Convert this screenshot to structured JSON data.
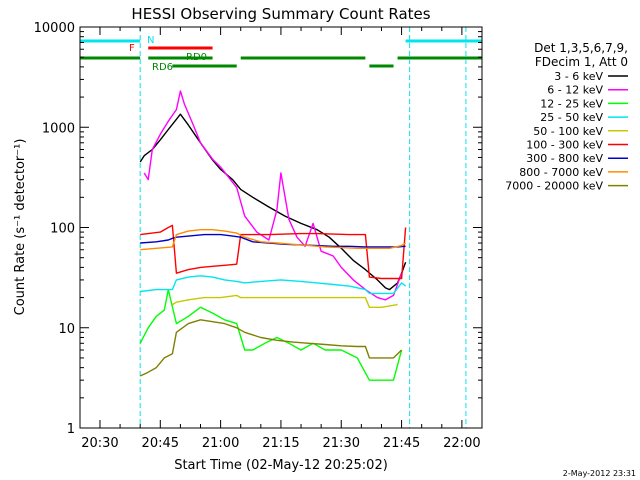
{
  "chart_data": {
    "type": "line",
    "title": "HESSI Observing Summary Count Rates",
    "xlabel": "Start Time (02-May-12 20:25:02)",
    "ylabel": "Count Rate (s⁻¹ detector⁻¹)",
    "yscale": "log",
    "ylim": [
      1,
      10000
    ],
    "xlim": [
      "20:25:02",
      "22:05"
    ],
    "x_ticks": [
      "20:30",
      "20:45",
      "21:00",
      "21:15",
      "21:30",
      "21:45",
      "22:00"
    ],
    "y_ticks": [
      "1",
      "10",
      "100",
      "1000",
      "10000"
    ],
    "grid": false,
    "legend": {
      "placement": "right",
      "header": [
        "Det 1,3,5,6,7,9,",
        "FDecim 1, Att 0"
      ]
    },
    "footer": "2-May-2012 23:31",
    "flag_labels": [
      "N",
      "F",
      "RD0",
      "RD6"
    ],
    "flags": [
      {
        "label": "N",
        "color": "#00e5ee",
        "segments": [
          [
            "20:25",
            "20:40"
          ],
          [
            "21:46",
            "22:05"
          ]
        ]
      },
      {
        "label": "F",
        "color": "#ff0000",
        "segments": [
          [
            "20:42",
            "20:58"
          ]
        ]
      },
      {
        "label": "RD0",
        "color": "#008800",
        "segments": [
          [
            "20:25",
            "20:40"
          ],
          [
            "20:42",
            "20:58"
          ],
          [
            "21:05",
            "21:36"
          ],
          [
            "21:44",
            "22:05"
          ]
        ]
      },
      {
        "label": "RD6",
        "color": "#008800",
        "segments": [
          [
            "20:48",
            "21:04"
          ],
          [
            "21:37",
            "21:43"
          ]
        ]
      }
    ],
    "night_markers": [
      "20:40",
      "21:47",
      "22:01"
    ],
    "series": [
      {
        "name": "3 - 6 keV",
        "color": "#000000",
        "x": [
          "20:40",
          "20:41",
          "20:43",
          "20:45",
          "20:47",
          "20:49",
          "20:50",
          "20:52",
          "20:55",
          "20:58",
          "21:00",
          "21:03",
          "21:05",
          "21:08",
          "21:12",
          "21:16",
          "21:20",
          "21:24",
          "21:27",
          "21:30",
          "21:33",
          "21:36",
          "21:39",
          "21:41",
          "21:42",
          "21:44",
          "21:45",
          "21:46"
        ],
        "y": [
          450,
          520,
          600,
          750,
          950,
          1200,
          1350,
          1050,
          700,
          470,
          380,
          300,
          240,
          200,
          160,
          130,
          110,
          95,
          80,
          62,
          47,
          38,
          30,
          25,
          24,
          28,
          35,
          45
        ]
      },
      {
        "name": "6 - 12 keV",
        "color": "#ff00ff",
        "x": [
          "20:41",
          "20:42",
          "20:43",
          "20:45",
          "20:47",
          "20:49",
          "20:50",
          "20:51",
          "20:53",
          "20:55",
          "20:58",
          "21:00",
          "21:04",
          "21:06",
          "21:09",
          "21:12",
          "21:14",
          "21:15",
          "21:17",
          "21:19",
          "21:21",
          "21:23",
          "21:25",
          "21:28",
          "21:30",
          "21:33",
          "21:36",
          "21:39",
          "21:41",
          "21:43",
          "21:45"
        ],
        "y": [
          350,
          300,
          600,
          850,
          1150,
          1500,
          2300,
          1700,
          1100,
          700,
          480,
          400,
          250,
          130,
          90,
          75,
          150,
          350,
          120,
          80,
          65,
          110,
          58,
          52,
          40,
          30,
          24,
          20,
          19,
          21,
          35
        ]
      },
      {
        "name": "12 - 25 keV",
        "color": "#00ff00",
        "x": [
          "20:40",
          "20:42",
          "20:44",
          "20:46",
          "20:47",
          "20:49",
          "20:52",
          "20:55",
          "20:58",
          "21:01",
          "21:04",
          "21:06",
          "21:08",
          "21:11",
          "21:14",
          "21:17",
          "21:20",
          "21:23",
          "21:26",
          "21:30",
          "21:34",
          "21:37",
          "21:40",
          "21:43",
          "21:45"
        ],
        "y": [
          7,
          10,
          13,
          15,
          24,
          11,
          13,
          16,
          14,
          12,
          11,
          6,
          6,
          7,
          8,
          7,
          6,
          7,
          6,
          6,
          5,
          3,
          3,
          3,
          6
        ]
      },
      {
        "name": "25 - 50 keV",
        "color": "#00e5ee",
        "x": [
          "20:40",
          "20:44",
          "20:48",
          "20:49",
          "20:52",
          "20:55",
          "20:58",
          "21:01",
          "21:04",
          "21:06",
          "21:10",
          "21:15",
          "21:20",
          "21:24",
          "21:28",
          "21:32",
          "21:36",
          "21:37",
          "21:40",
          "21:43",
          "21:45",
          "21:46"
        ],
        "y": [
          23,
          24,
          24,
          30,
          32,
          33,
          32,
          30,
          29,
          28,
          29,
          30,
          29,
          28,
          27,
          26,
          24,
          22,
          22,
          22,
          28,
          26
        ]
      },
      {
        "name": "50 - 100 keV",
        "color": "#c8c800",
        "x": [
          "20:48",
          "20:49",
          "20:52",
          "20:56",
          "21:00",
          "21:04",
          "21:05",
          "21:36",
          "21:37",
          "21:40",
          "21:44"
        ],
        "y": [
          17,
          18,
          19,
          20,
          20,
          21,
          20,
          20,
          16,
          16,
          17
        ]
      },
      {
        "name": "100 - 300 keV",
        "color": "#ff0000",
        "x": [
          "20:40",
          "20:45",
          "20:47",
          "20:48",
          "20:49",
          "20:52",
          "20:55",
          "20:58",
          "21:01",
          "21:04",
          "21:05",
          "21:08",
          "21:12",
          "21:16",
          "21:20",
          "21:24",
          "21:28",
          "21:32",
          "21:36",
          "21:37",
          "21:40",
          "21:43",
          "21:45",
          "21:46"
        ],
        "y": [
          85,
          90,
          100,
          105,
          35,
          38,
          40,
          41,
          42,
          43,
          85,
          85,
          85,
          86,
          87,
          87,
          86,
          85,
          85,
          32,
          31,
          31,
          31,
          100
        ]
      },
      {
        "name": "300 - 800 keV",
        "color": "#0000cc",
        "x": [
          "20:40",
          "20:44",
          "20:47",
          "20:48",
          "20:49",
          "20:52",
          "20:56",
          "21:00",
          "21:03",
          "21:05",
          "21:08",
          "21:12",
          "21:16",
          "21:20",
          "21:24",
          "21:28",
          "21:32",
          "21:36",
          "21:40",
          "21:44",
          "21:46"
        ],
        "y": [
          70,
          72,
          75,
          78,
          80,
          82,
          85,
          85,
          82,
          80,
          72,
          70,
          68,
          67,
          66,
          65,
          65,
          64,
          64,
          64,
          65
        ]
      },
      {
        "name": "800 - 7000 keV",
        "color": "#ff8c00",
        "x": [
          "20:40",
          "20:44",
          "20:48",
          "20:49",
          "20:52",
          "20:55",
          "20:58",
          "21:01",
          "21:04",
          "21:06",
          "21:10",
          "21:14",
          "21:18",
          "21:22",
          "21:26",
          "21:30",
          "21:34",
          "21:38",
          "21:42",
          "21:45",
          "21:46"
        ],
        "y": [
          60,
          62,
          64,
          85,
          92,
          95,
          95,
          92,
          88,
          80,
          72,
          70,
          68,
          66,
          64,
          63,
          62,
          62,
          62,
          66,
          70
        ]
      },
      {
        "name": "7000 - 20000 keV",
        "color": "#808000",
        "x": [
          "20:40",
          "20:42",
          "20:44",
          "20:46",
          "20:48",
          "20:49",
          "20:52",
          "20:55",
          "20:58",
          "21:01",
          "21:04",
          "21:06",
          "21:10",
          "21:14",
          "21:18",
          "21:22",
          "21:26",
          "21:30",
          "21:34",
          "21:36",
          "21:37",
          "21:40",
          "21:43",
          "21:45"
        ],
        "y": [
          3.3,
          3.6,
          4,
          5,
          5.5,
          9,
          11,
          12,
          11.5,
          11,
          10,
          9,
          8,
          7.5,
          7.2,
          7,
          6.8,
          6.6,
          6.5,
          6.5,
          5,
          5,
          5,
          6
        ]
      }
    ]
  }
}
